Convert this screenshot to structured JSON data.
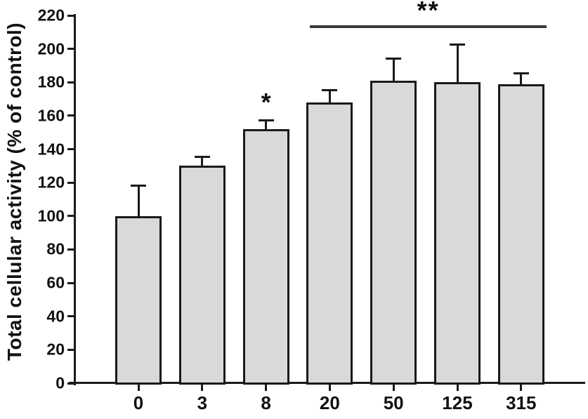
{
  "figure": {
    "background": "#ffffff",
    "text_color": "#111111"
  },
  "chart_data": {
    "type": "bar",
    "title": "",
    "xlabel": "",
    "ylabel": "Total cellular activity (% of control)",
    "categories": [
      "0",
      "3",
      "8",
      "20",
      "50",
      "125",
      "315"
    ],
    "values": [
      100,
      130,
      152,
      168,
      181,
      180,
      179
    ],
    "errors": [
      19,
      6,
      6,
      8,
      14,
      23,
      7
    ],
    "error_direction": "upper-only",
    "ylim": [
      0,
      220
    ],
    "yticks": [
      0,
      20,
      40,
      60,
      80,
      100,
      120,
      140,
      160,
      180,
      200,
      220
    ],
    "grid": false,
    "legend": null,
    "bar_fill": "#d9d9d9",
    "bar_border": "#1a1a1a",
    "axis_color": "#1a1a1a",
    "significance_line_color": "#3a3a3a",
    "annotations": [
      {
        "type": "star",
        "label": "*",
        "category": "8"
      },
      {
        "type": "bracket",
        "label": "**",
        "from": "20",
        "to": "315"
      }
    ]
  }
}
